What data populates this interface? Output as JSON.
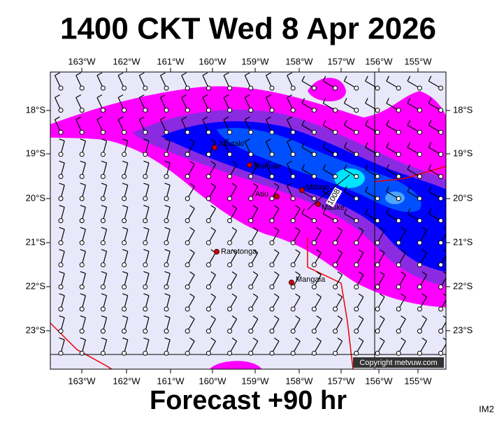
{
  "header": {
    "title": "1400 CKT Wed 8 Apr 2026"
  },
  "footer": {
    "forecast": "Forecast +90 hr",
    "corner": "IM2"
  },
  "map": {
    "lon_labels": [
      "163°W",
      "162°W",
      "161°W",
      "160°W",
      "159°W",
      "158°W",
      "157°W",
      "156°W",
      "155°W"
    ],
    "lat_labels": [
      "18°S",
      "19°S",
      "20°S",
      "21°S",
      "22°S",
      "23°S"
    ],
    "places": [
      "Aitutaki",
      "Manuae",
      "Atiu",
      "Mitiaro",
      "Mauke",
      "Rarotonga",
      "Mangaia"
    ],
    "isobar_label": "1008",
    "copyright": "Copyright metvuw.com"
  }
}
